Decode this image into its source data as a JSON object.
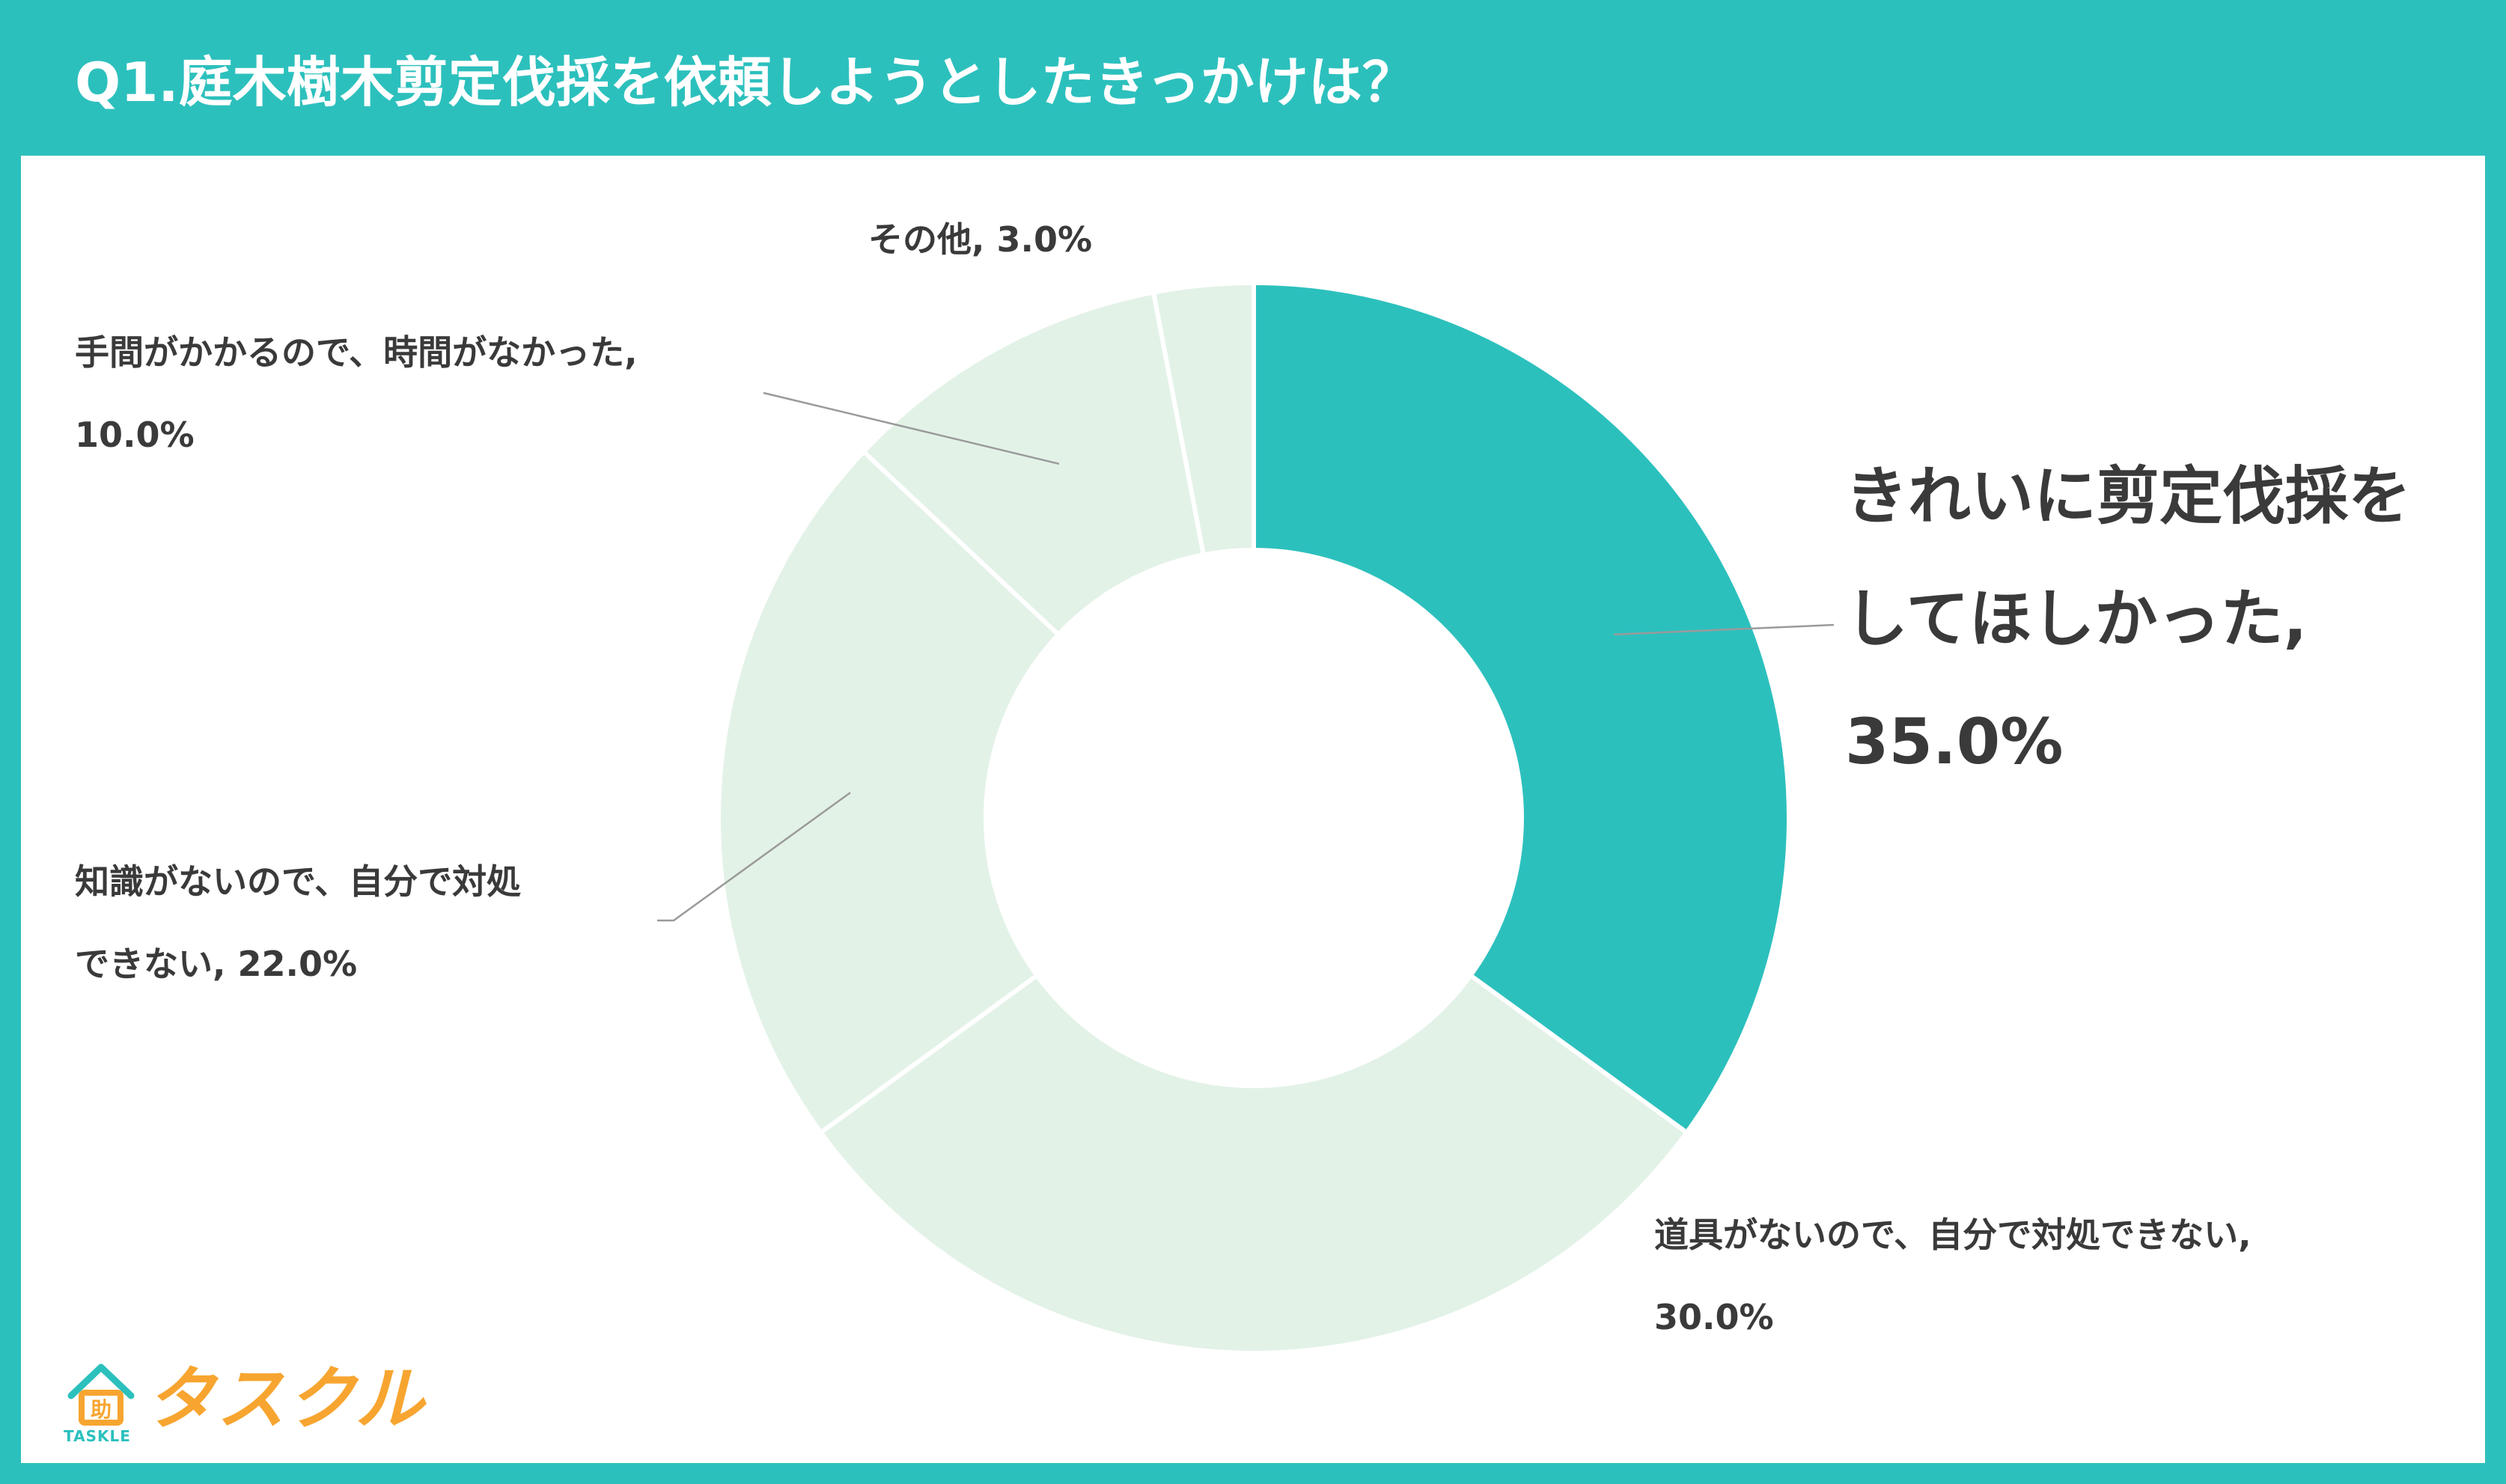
{
  "header": {
    "title": "Q1.庭木樹木剪定伐採を依頼しようとしたきっかけは？"
  },
  "colors": {
    "accent": "#2cc0bd",
    "other": "#e3f2e7",
    "divider": "#ffffff",
    "leader": "#9a9a9a"
  },
  "chart_data": {
    "type": "pie",
    "variant": "donut",
    "series": [
      {
        "name": "きれいに剪定伐採をしてほしかった",
        "value": 35.0,
        "label_l1": "きれいに剪定伐採を",
        "label_l2": "してほしかった,",
        "label_l3": "35.0%",
        "highlight": true
      },
      {
        "name": "道具がないので、自分で対処できない",
        "value": 30.0,
        "label_l1": "道具がないので、自分で対処できない,",
        "label_l2": "30.0%"
      },
      {
        "name": "知識がないので、自分で対処できない",
        "value": 22.0,
        "label_l1": "知識がないので、自分で対処",
        "label_l2": "できない, 22.0%"
      },
      {
        "name": "手間がかかるので、時間がなかった",
        "value": 10.0,
        "label_l1": "手間がかかるので、時間がなかった,",
        "label_l2": "10.0%"
      },
      {
        "name": "その他",
        "value": 3.0,
        "label_l1": "その他, 3.0%"
      }
    ],
    "order": "clockwise-from-top"
  },
  "logo": {
    "text": "タスクル",
    "sub": "TASKLE",
    "mark": "助"
  }
}
